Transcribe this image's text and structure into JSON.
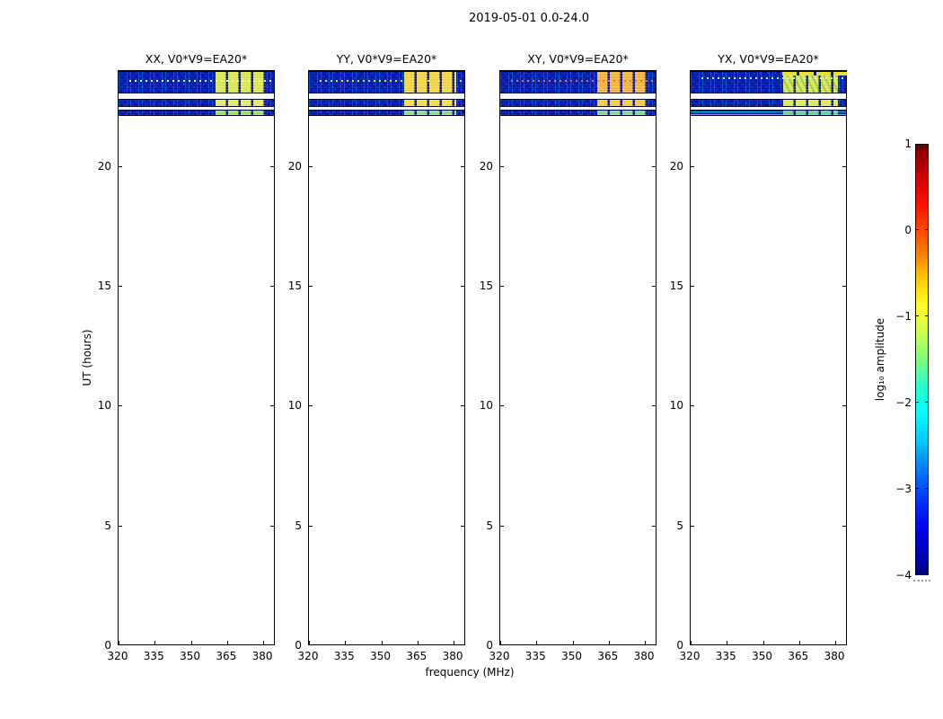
{
  "figure": {
    "title": "2019-05-01 0.0-24.0",
    "xlabel": "frequency (MHz)",
    "ylabel": "UT (hours)"
  },
  "colorbar": {
    "label": "log₁₀ amplitude",
    "tick_labels": [
      "1",
      "0",
      "−1",
      "−2",
      "−3",
      "−4"
    ]
  },
  "axes_display": {
    "x_tick_labels": [
      "320",
      "335",
      "350",
      "365",
      "380"
    ],
    "y_tick_labels": [
      "0",
      "5",
      "10",
      "15",
      "20"
    ]
  },
  "chart_data": {
    "type": "heatmap",
    "title": "2019-05-01 0.0-24.0",
    "xlabel": "frequency (MHz)",
    "ylabel": "UT (hours)",
    "colorbar_label": "log10 amplitude",
    "colormap": "jet",
    "clim": [
      -4,
      1
    ],
    "colorbar_ticks": [
      1,
      0,
      -1,
      -2,
      -3,
      -4
    ],
    "x_range_mhz": [
      320,
      385
    ],
    "x_ticks": [
      320,
      335,
      350,
      365,
      380
    ],
    "y_range_hours": [
      0,
      24
    ],
    "y_ticks": [
      0,
      5,
      10,
      15,
      20
    ],
    "notes": "Dynamic spectra: data only present near top of day (UT ~22.1-24.0 h), rest blank white. Low-level blue noise (~1e-3 amplitude) across 320-385 MHz with bright yellow/orange RFI blocks at ~360-381 MHz, separated by white time gaps.",
    "panels": [
      {
        "title": "XX, V0*V9=EA20*",
        "correlation": "XX",
        "baseline": "V0*V9=EA20*",
        "data_present_hours": [
          22.1,
          24.0
        ],
        "bands": [
          {
            "t": [
              23.05,
              24.0
            ],
            "kind": "noise",
            "blocks": {
              "f": [
                360.3,
                381.2
              ],
              "color": "#d9e455"
            },
            "dotline": {
              "t": 23.62,
              "color": "#f4f2c8"
            }
          },
          {
            "t": [
              22.5,
              22.85
            ],
            "kind": "noise",
            "blocks": {
              "f": [
                360.3,
                381.2
              ],
              "color": "#e4ea5e"
            }
          },
          {
            "t": [
              22.13,
              22.39
            ],
            "kind": "noise",
            "blocks": {
              "f": [
                360.3,
                381.2
              ],
              "color": "#9fd96a"
            }
          }
        ]
      },
      {
        "title": "YY, V0*V9=EA20*",
        "correlation": "YY",
        "baseline": "V0*V9=EA20*",
        "data_present_hours": [
          22.1,
          24.0
        ],
        "bands": [
          {
            "t": [
              23.05,
              24.0
            ],
            "kind": "noise",
            "blocks": {
              "f": [
                359.5,
                381.2
              ],
              "color": "#eed44a"
            },
            "dotline": {
              "t": 23.62,
              "color": "#f0e23c"
            }
          },
          {
            "t": [
              22.5,
              22.85
            ],
            "kind": "noise",
            "blocks": {
              "f": [
                359.5,
                381.2
              ],
              "color": "#f4de3e"
            }
          },
          {
            "t": [
              22.13,
              22.39
            ],
            "kind": "noise",
            "blocks": {
              "f": [
                359.5,
                381.2
              ],
              "color": "#8fd98a"
            }
          }
        ]
      },
      {
        "title": "XY, V0*V9=EA20*",
        "correlation": "XY",
        "baseline": "V0*V9=EA20*",
        "data_present_hours": [
          22.1,
          24.0
        ],
        "bands": [
          {
            "t": [
              23.05,
              24.0
            ],
            "kind": "noise",
            "blocks": {
              "f": [
                360.3,
                381.2
              ],
              "color": "#f2b43a"
            },
            "dotline": {
              "t": 23.62,
              "color": "#f27024"
            }
          },
          {
            "t": [
              22.5,
              22.85
            ],
            "kind": "noise",
            "blocks": {
              "f": [
                360.3,
                381.2
              ],
              "color": "#f8cc30"
            }
          },
          {
            "t": [
              22.13,
              22.39
            ],
            "kind": "noise",
            "blocks": {
              "f": [
                360.3,
                381.2
              ],
              "color": "#7ed98f"
            }
          }
        ]
      },
      {
        "title": "YX, V0*V9=EA20*",
        "correlation": "YX",
        "baseline": "V0*V9=EA20*",
        "data_present_hours": [
          22.1,
          24.0
        ],
        "bands": [
          {
            "t": [
              23.05,
              24.0
            ],
            "kind": "noise",
            "diag": true,
            "blocks": {
              "f": [
                358.5,
                381.2
              ],
              "color": "#d9e455"
            },
            "top_strip": {
              "f": [
                358.0,
                385.0
              ],
              "color": "#e8e030"
            },
            "dotline": {
              "t": 23.75,
              "color": "#d8e8f0"
            }
          },
          {
            "t": [
              22.5,
              22.85
            ],
            "kind": "noise",
            "blocks": {
              "f": [
                358.5,
                381.2
              ],
              "color": "#e0e74f"
            }
          },
          {
            "t": [
              22.13,
              22.39
            ],
            "kind": "striped",
            "blocks": {
              "f": [
                358.5,
                381.2
              ],
              "color": "#66cf9a"
            }
          }
        ]
      }
    ]
  }
}
